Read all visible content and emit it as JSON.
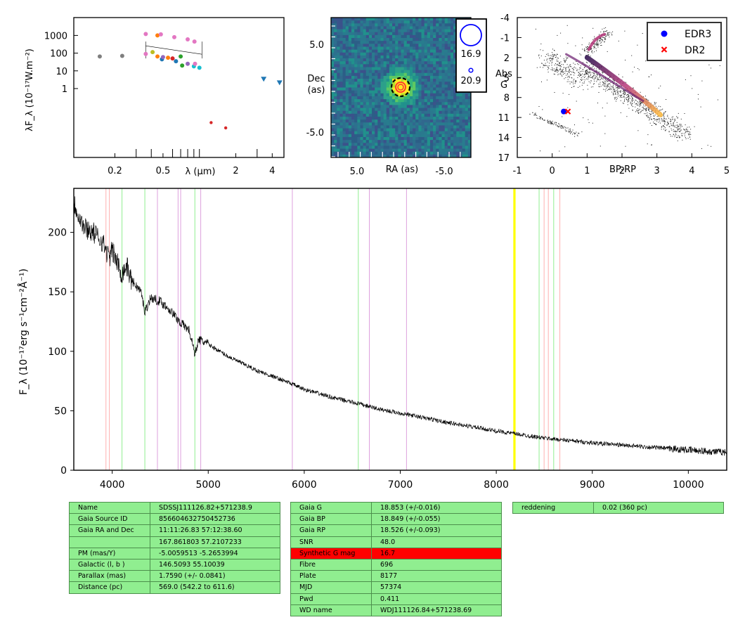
{
  "chart_data": [
    {
      "type": "scatter",
      "panel": "sed",
      "ylabel": "λF_λ (10⁻¹⁷W.m⁻²)",
      "xlabel": "λ (μm)",
      "xscale": "log",
      "yscale": "log",
      "x_ticks": [
        "0.2",
        "0.5",
        "2",
        "4"
      ],
      "y_ticks": [
        "1000",
        "100",
        "10",
        "1"
      ],
      "points": [
        {
          "x": 0.15,
          "y": 65,
          "color": "#7f7f7f"
        },
        {
          "x": 0.23,
          "y": 70,
          "color": "#7f7f7f"
        },
        {
          "x": 0.36,
          "y": 90,
          "color": "#e377c2"
        },
        {
          "x": 0.36,
          "y": 1200,
          "color": "#e377c2"
        },
        {
          "x": 0.41,
          "y": 115,
          "color": "#bcbd22"
        },
        {
          "x": 0.45,
          "y": 1000,
          "color": "#ff7f0e"
        },
        {
          "x": 0.45,
          "y": 65,
          "color": "#ff7f0e"
        },
        {
          "x": 0.48,
          "y": 1150,
          "color": "#e377c2"
        },
        {
          "x": 0.49,
          "y": 45,
          "color": "#1f77b4"
        },
        {
          "x": 0.5,
          "y": 60,
          "color": "#9467bd"
        },
        {
          "x": 0.55,
          "y": 55,
          "color": "#ff7f0e"
        },
        {
          "x": 0.6,
          "y": 50,
          "color": "#d62728"
        },
        {
          "x": 0.62,
          "y": 800,
          "color": "#e377c2"
        },
        {
          "x": 0.64,
          "y": 35,
          "color": "#1f77b4"
        },
        {
          "x": 0.7,
          "y": 65,
          "color": "#2ca02c"
        },
        {
          "x": 0.72,
          "y": 20,
          "color": "#2ca02c"
        },
        {
          "x": 0.8,
          "y": 600,
          "color": "#e377c2"
        },
        {
          "x": 0.8,
          "y": 25,
          "color": "#9467bd"
        },
        {
          "x": 0.9,
          "y": 18,
          "color": "#17becf"
        },
        {
          "x": 0.91,
          "y": 450,
          "color": "#e377c2"
        },
        {
          "x": 0.92,
          "y": 25,
          "color": "#e377c2"
        },
        {
          "x": 1.0,
          "y": 15,
          "color": "#17becf"
        },
        {
          "x": 1.25,
          "y": 0.012,
          "color": "#d62728"
        },
        {
          "x": 1.65,
          "y": 0.006,
          "color": "#d62728"
        },
        {
          "x": 3.4,
          "y": 3.5,
          "color": "#1f77b4",
          "marker": "triangle-down"
        },
        {
          "x": 4.6,
          "y": 2.2,
          "color": "#1f77b4",
          "marker": "triangle-down"
        }
      ]
    },
    {
      "type": "heatmap",
      "panel": "image",
      "xlabel": "RA (as)",
      "ylabel": "Dec\n(as)",
      "x_ticks": [
        "5.0",
        "-5.0"
      ],
      "y_ticks": [
        "5.0",
        "-5.0"
      ],
      "legend": [
        {
          "label": "16.9"
        },
        {
          "label": "20.9"
        }
      ]
    },
    {
      "type": "scatter",
      "panel": "hr_diagram",
      "xlabel": "BP-RP",
      "ylabel": "Abs\nG",
      "xlim": [
        -1,
        5
      ],
      "ylim": [
        17,
        -4
      ],
      "x_ticks": [
        "-1",
        "0",
        "1",
        "2",
        "3",
        "4",
        "5"
      ],
      "y_ticks": [
        "-4",
        "-1",
        "2",
        "5",
        "8",
        "11",
        "14",
        "17"
      ],
      "series": [
        {
          "name": "EDR3",
          "x": [
            0.33
          ],
          "y": [
            10.1
          ],
          "color": "#0000ff",
          "marker": "circle"
        },
        {
          "name": "DR2",
          "x": [
            0.45
          ],
          "y": [
            10.1
          ],
          "color": "#ff0000",
          "marker": "x"
        }
      ],
      "legend_position": "top-right"
    },
    {
      "type": "line",
      "panel": "spectrum",
      "ylabel": "F_λ (10⁻¹⁷erg s⁻¹cm⁻²Å⁻¹)",
      "xlim": [
        3600,
        10400
      ],
      "ylim": [
        0,
        237
      ],
      "x_ticks": [
        "4000",
        "5000",
        "6000",
        "7000",
        "8000",
        "9000",
        "10000"
      ],
      "y_ticks": [
        "0",
        "50",
        "100",
        "150",
        "200"
      ],
      "x": [
        3600,
        3650,
        3700,
        3800,
        3900,
        3970,
        4000,
        4050,
        4100,
        4150,
        4200,
        4300,
        4340,
        4400,
        4500,
        4600,
        4700,
        4800,
        4861,
        4900,
        5000,
        5200,
        5500,
        5800,
        6000,
        6300,
        6563,
        6800,
        7000,
        7500,
        8000,
        8500,
        9000,
        9500,
        10000,
        10400
      ],
      "y": [
        225,
        215,
        205,
        200,
        192,
        178,
        185,
        175,
        165,
        172,
        160,
        150,
        133,
        145,
        142,
        135,
        125,
        118,
        98,
        110,
        106,
        96,
        84,
        75,
        68,
        61,
        56,
        51,
        48,
        40,
        33,
        27,
        23,
        20,
        17,
        15
      ],
      "vlines": [
        {
          "x": 3935,
          "color": "#ffb0b0"
        },
        {
          "x": 3970,
          "color": "#ffb0b0"
        },
        {
          "x": 4102,
          "color": "#90ee90"
        },
        {
          "x": 4340,
          "color": "#90ee90"
        },
        {
          "x": 4471,
          "color": "#dda0dd"
        },
        {
          "x": 4686,
          "color": "#dda0dd"
        },
        {
          "x": 4713,
          "color": "#dda0dd"
        },
        {
          "x": 4861,
          "color": "#90ee90"
        },
        {
          "x": 4922,
          "color": "#dda0dd"
        },
        {
          "x": 5876,
          "color": "#dda0dd"
        },
        {
          "x": 6563,
          "color": "#90ee90"
        },
        {
          "x": 6678,
          "color": "#dda0dd"
        },
        {
          "x": 7065,
          "color": "#dda0dd"
        },
        {
          "x": 8183,
          "color": "#ffff00"
        },
        {
          "x": 8195,
          "color": "#ffff00"
        },
        {
          "x": 8446,
          "color": "#90ee90"
        },
        {
          "x": 8498,
          "color": "#ffb0b0"
        },
        {
          "x": 8542,
          "color": "#ffb0b0"
        },
        {
          "x": 8598,
          "color": "#90ee90"
        },
        {
          "x": 8662,
          "color": "#ffb0b0"
        }
      ]
    }
  ],
  "tables": {
    "left": [
      {
        "k": "Name",
        "v": "SDSSJ111126.82+571238.9"
      },
      {
        "k": "Gaia Source ID",
        "v": "856604632750452736"
      },
      {
        "k": "Gaia RA and Dec",
        "v": "11:11:26.83    57:12:38.60"
      },
      {
        "k": "",
        "v": "167.861803    57.2107233"
      },
      {
        "k": "PM (mas/Y)",
        "v": "-5.0059513    -5.2653994"
      },
      {
        "k": "Galactic (l, b )",
        "v": "146.5093    55.10039"
      },
      {
        "k": "Parallax (mas)",
        "v": "1.7590 (+/- 0.0841)"
      },
      {
        "k": "Distance (pc)",
        "v": "569.0 (542.2 to 611.6)"
      }
    ],
    "middle": [
      {
        "k": "Gaia G",
        "v": "18.853 (+/-0.016)"
      },
      {
        "k": "Gaia BP",
        "v": "18.849 (+/-0.055)"
      },
      {
        "k": "Gaia RP",
        "v": "18.526 (+/-0.093)"
      },
      {
        "k": "SNR",
        "v": "48.0"
      },
      {
        "k": "Synthetic G mag",
        "v": "16.7",
        "highlight": true
      },
      {
        "k": "Fibre",
        "v": "696"
      },
      {
        "k": "Plate",
        "v": "8177"
      },
      {
        "k": "MJD",
        "v": "57374"
      },
      {
        "k": "Pwd",
        "v": "0.411"
      },
      {
        "k": "WD name",
        "v": "WDJ111126.84+571238.69"
      }
    ],
    "right": [
      {
        "k": "reddening",
        "v": "0.02 (360 pc)"
      }
    ]
  },
  "colors": {
    "table_bg": "#90ee90",
    "table_highlight": "#ff0000",
    "edr3": "#0000ff",
    "dr2": "#ff0000"
  }
}
